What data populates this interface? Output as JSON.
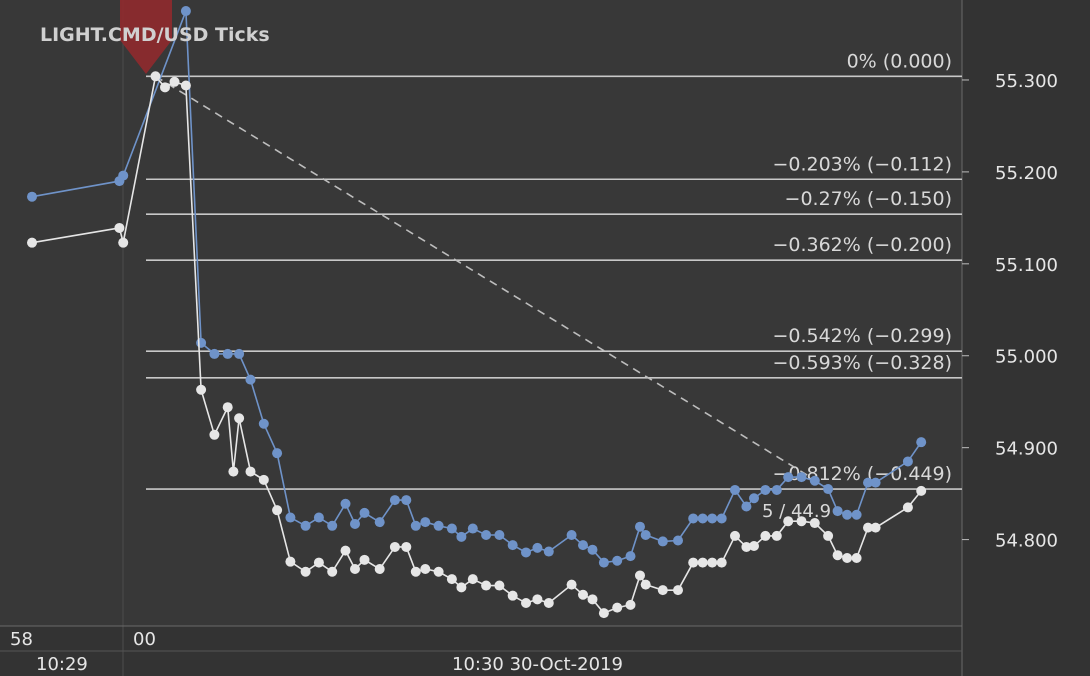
{
  "chart_data": {
    "type": "line",
    "title": "LIGHT.CMD/USD  Ticks",
    "ylim": [
      54.706,
      55.387
    ],
    "y_ticks": [
      "55.300",
      "55.200",
      "55.100",
      "55.000",
      "54.900",
      "54.800"
    ],
    "y_tick_values": [
      55.3,
      55.2,
      55.1,
      55.0,
      54.9,
      54.8
    ],
    "x_ticks": {
      "seconds": [
        {
          "label": "58",
          "x_index": -1
        },
        {
          "label": "00",
          "x_index": 0
        }
      ],
      "minutes": [
        {
          "label": "10:29"
        },
        {
          "label": "10:30 30-Oct-2019"
        }
      ]
    },
    "fib_levels": [
      {
        "label": "0% (0.000)",
        "price": 55.304
      },
      {
        "label": "−0.203% (−0.112)",
        "price": 55.192
      },
      {
        "label": "−0.27% (−0.150)",
        "price": 55.154
      },
      {
        "label": "−0.362% (−0.200)",
        "price": 55.104
      },
      {
        "label": "−0.542% (−0.299)",
        "price": 55.005
      },
      {
        "label": "−0.593% (−0.328)",
        "price": 54.976
      },
      {
        "label": "−0.812% (−0.449)",
        "price": 54.855
      }
    ],
    "trendline": {
      "from": {
        "t": 0.5,
        "price": 55.304
      },
      "to": {
        "t": 36.0,
        "price": 54.855
      }
    },
    "annotation": "5 / 44.9",
    "series": [
      {
        "color": "#6f93c9",
        "points": [
          [
            -6.0,
            55.173
          ],
          [
            -1.4,
            55.19
          ],
          [
            -1.2,
            55.196
          ],
          [
            2.1,
            55.375
          ],
          [
            2.9,
            55.014
          ],
          [
            3.6,
            55.002
          ],
          [
            4.3,
            55.002
          ],
          [
            4.9,
            55.002
          ],
          [
            5.5,
            54.974
          ],
          [
            6.2,
            54.926
          ],
          [
            6.9,
            54.894
          ],
          [
            7.6,
            54.824
          ],
          [
            8.4,
            54.815
          ],
          [
            9.1,
            54.824
          ],
          [
            9.8,
            54.815
          ],
          [
            10.5,
            54.839
          ],
          [
            11.0,
            54.817
          ],
          [
            11.5,
            54.829
          ],
          [
            12.3,
            54.819
          ],
          [
            13.1,
            54.843
          ],
          [
            13.7,
            54.843
          ],
          [
            14.2,
            54.815
          ],
          [
            14.7,
            54.819
          ],
          [
            15.4,
            54.815
          ],
          [
            16.1,
            54.812
          ],
          [
            16.6,
            54.803
          ],
          [
            17.2,
            54.812
          ],
          [
            17.9,
            54.805
          ],
          [
            18.6,
            54.805
          ],
          [
            19.3,
            54.794
          ],
          [
            20.0,
            54.786
          ],
          [
            20.6,
            54.791
          ],
          [
            21.2,
            54.787
          ],
          [
            22.4,
            54.805
          ],
          [
            23.0,
            54.794
          ],
          [
            23.5,
            54.789
          ],
          [
            24.1,
            54.775
          ],
          [
            24.8,
            54.777
          ],
          [
            25.5,
            54.782
          ],
          [
            26.0,
            54.814
          ],
          [
            26.3,
            54.805
          ],
          [
            27.2,
            54.798
          ],
          [
            28.0,
            54.799
          ],
          [
            28.8,
            54.823
          ],
          [
            29.3,
            54.823
          ],
          [
            29.8,
            54.823
          ],
          [
            30.3,
            54.823
          ],
          [
            31.0,
            54.854
          ],
          [
            31.6,
            54.836
          ],
          [
            32.0,
            54.845
          ],
          [
            32.6,
            54.854
          ],
          [
            33.2,
            54.854
          ],
          [
            33.8,
            54.868
          ],
          [
            34.5,
            54.868
          ],
          [
            35.2,
            54.864
          ],
          [
            35.9,
            54.855
          ],
          [
            36.4,
            54.831
          ],
          [
            36.9,
            54.827
          ],
          [
            37.4,
            54.827
          ],
          [
            38.0,
            54.862
          ],
          [
            38.4,
            54.862
          ],
          [
            40.1,
            54.885
          ],
          [
            40.8,
            54.906
          ]
        ]
      },
      {
        "color": "#e6e6e6",
        "points": [
          [
            -6.0,
            55.123
          ],
          [
            -1.4,
            55.139
          ],
          [
            -1.2,
            55.123
          ],
          [
            0.5,
            55.304
          ],
          [
            1.0,
            55.292
          ],
          [
            1.5,
            55.298
          ],
          [
            2.1,
            55.294
          ],
          [
            2.9,
            54.963
          ],
          [
            3.6,
            54.914
          ],
          [
            4.3,
            54.944
          ],
          [
            4.6,
            54.874
          ],
          [
            4.9,
            54.932
          ],
          [
            5.5,
            54.874
          ],
          [
            6.2,
            54.865
          ],
          [
            6.9,
            54.832
          ],
          [
            7.6,
            54.776
          ],
          [
            8.4,
            54.765
          ],
          [
            9.1,
            54.775
          ],
          [
            9.8,
            54.765
          ],
          [
            10.5,
            54.788
          ],
          [
            11.0,
            54.768
          ],
          [
            11.5,
            54.778
          ],
          [
            12.3,
            54.768
          ],
          [
            13.1,
            54.792
          ],
          [
            13.7,
            54.792
          ],
          [
            14.2,
            54.765
          ],
          [
            14.7,
            54.768
          ],
          [
            15.4,
            54.765
          ],
          [
            16.1,
            54.757
          ],
          [
            16.6,
            54.748
          ],
          [
            17.2,
            54.757
          ],
          [
            17.9,
            54.75
          ],
          [
            18.6,
            54.75
          ],
          [
            19.3,
            54.739
          ],
          [
            20.0,
            54.731
          ],
          [
            20.6,
            54.735
          ],
          [
            21.2,
            54.731
          ],
          [
            22.4,
            54.751
          ],
          [
            23.0,
            54.74
          ],
          [
            23.5,
            54.735
          ],
          [
            24.1,
            54.72
          ],
          [
            24.8,
            54.726
          ],
          [
            25.5,
            54.729
          ],
          [
            26.0,
            54.761
          ],
          [
            26.3,
            54.751
          ],
          [
            27.2,
            54.745
          ],
          [
            28.0,
            54.745
          ],
          [
            28.8,
            54.775
          ],
          [
            29.3,
            54.775
          ],
          [
            29.8,
            54.775
          ],
          [
            30.3,
            54.775
          ],
          [
            31.0,
            54.804
          ],
          [
            31.6,
            54.792
          ],
          [
            32.0,
            54.793
          ],
          [
            32.6,
            54.804
          ],
          [
            33.2,
            54.804
          ],
          [
            33.8,
            54.82
          ],
          [
            34.5,
            54.82
          ],
          [
            35.2,
            54.818
          ],
          [
            35.9,
            54.804
          ],
          [
            36.4,
            54.783
          ],
          [
            36.9,
            54.78
          ],
          [
            37.4,
            54.78
          ],
          [
            38.0,
            54.813
          ],
          [
            38.4,
            54.813
          ],
          [
            40.1,
            54.835
          ],
          [
            40.8,
            54.853
          ]
        ]
      }
    ]
  }
}
